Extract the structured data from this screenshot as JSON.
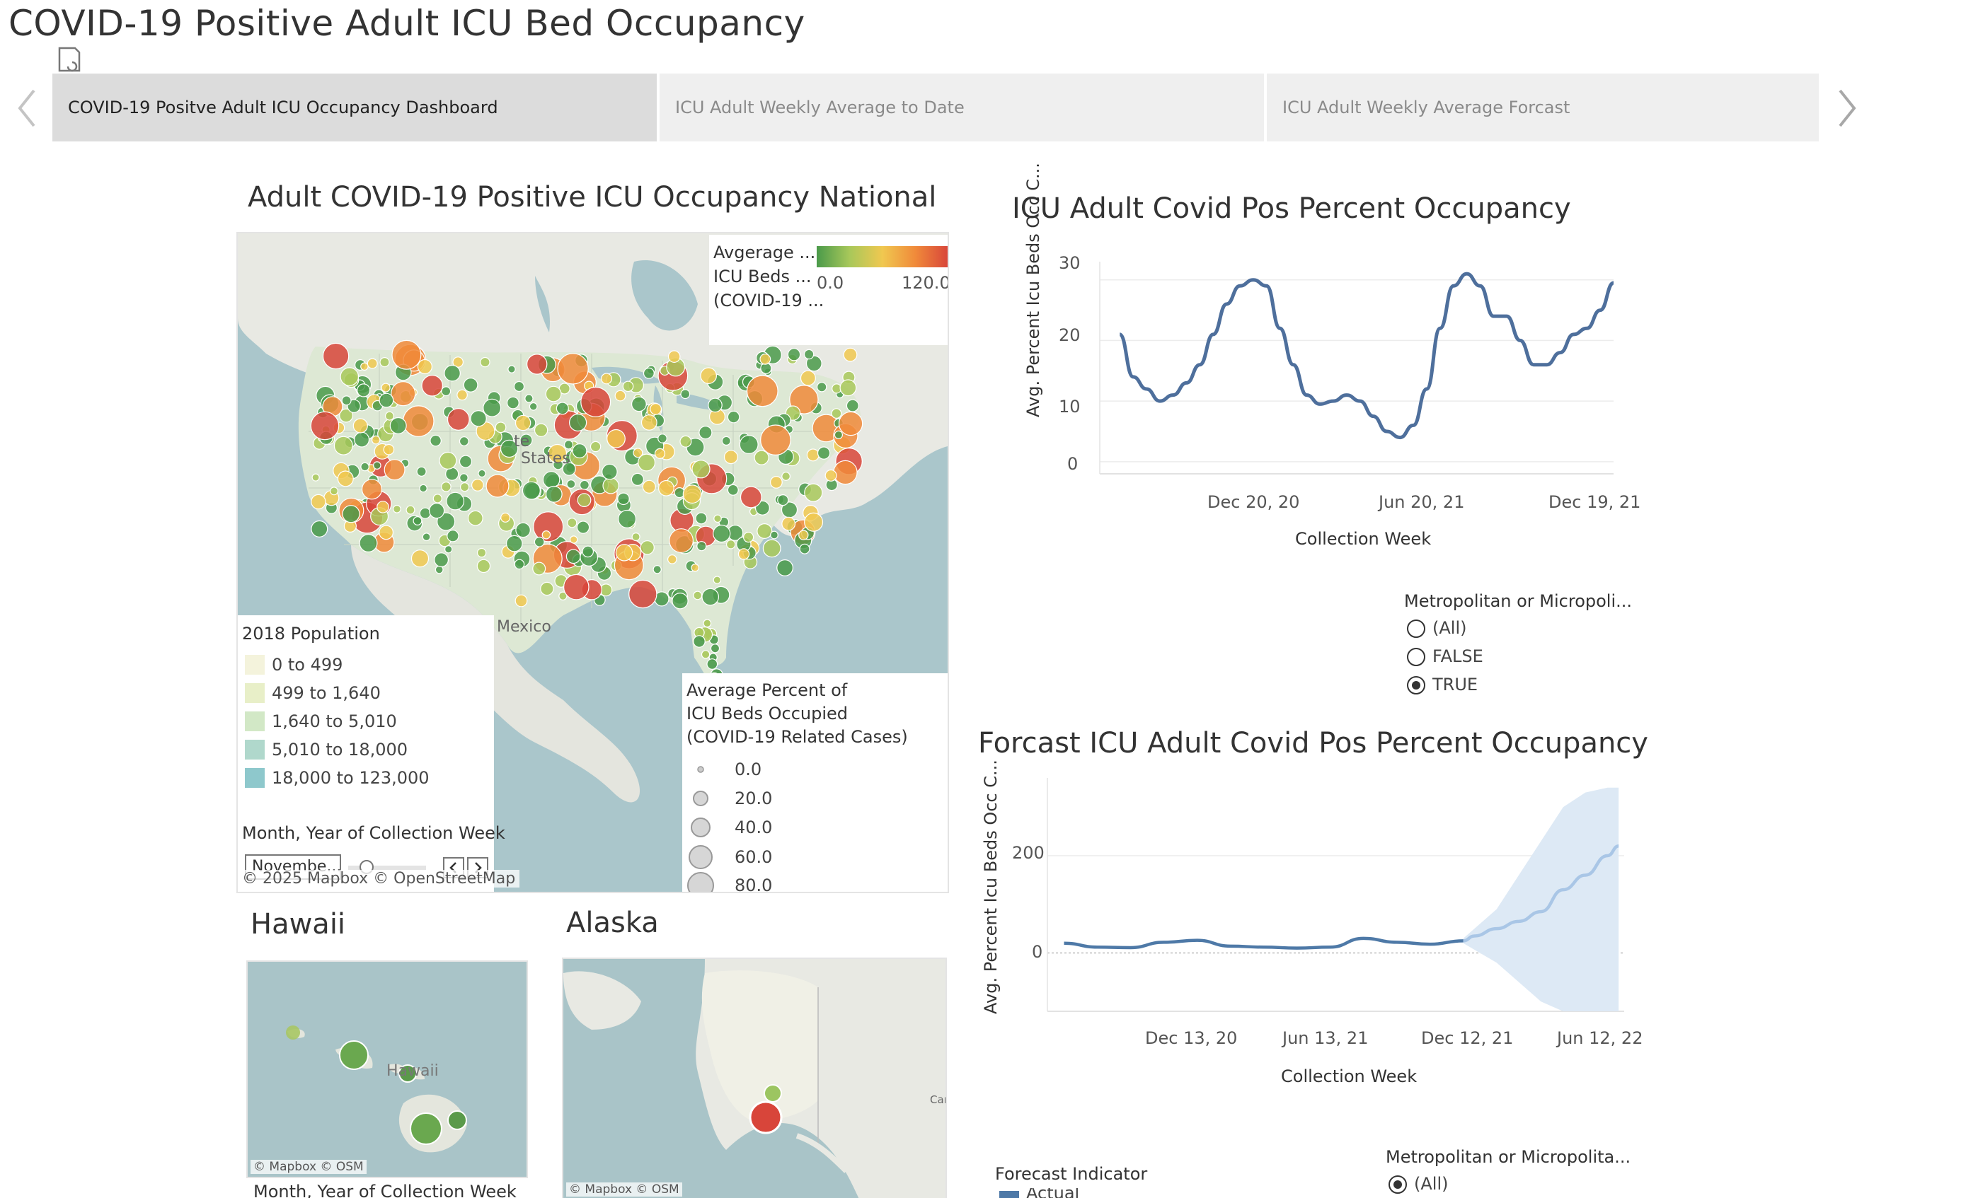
{
  "dashboard": {
    "title": "COVID-19 Positive Adult ICU Bed Occupancy"
  },
  "tabs": [
    {
      "label": "COVID-19 Positve Adult ICU Occupancy Dashboard",
      "active": true
    },
    {
      "label": "ICU Adult Weekly Average to Date",
      "active": false
    },
    {
      "label": "ICU Adult Weekly Average Forcast",
      "active": false
    }
  ],
  "map": {
    "title": "Adult COVID-19 Positive ICU Occupancy National",
    "label_mexico": "Mexico",
    "label_states": "States",
    "label_states_prefix": "te",
    "attribution": "© 2025 Mapbox  © OpenStreetMap",
    "color_legend": {
      "title_lines": [
        "Avgerage ...",
        "ICU Beds ...",
        "(COVID-19 ..."
      ],
      "min": "0.0",
      "max": "120.0",
      "colors": [
        "#4a9a4a",
        "#a8c85a",
        "#f0c850",
        "#f08a3a",
        "#d8453a"
      ]
    },
    "population_legend": {
      "title": "2018 Population",
      "items": [
        {
          "label": "0 to 499",
          "color": "#f4f3dc"
        },
        {
          "label": "499 to 1,640",
          "color": "#e8efc8"
        },
        {
          "label": "1,640 to 5,010",
          "color": "#d2e8c6"
        },
        {
          "label": "5,010 to 18,000",
          "color": "#b0d8cc"
        },
        {
          "label": "18,000 to 123,000",
          "color": "#8ec8cc"
        }
      ]
    },
    "size_legend": {
      "title_lines": [
        "Average Percent of",
        "ICU Beds Occupied",
        "(COVID-19 Related Cases)"
      ],
      "items": [
        "0.0",
        "20.0",
        "40.0",
        "60.0",
        "80.0"
      ]
    },
    "month_filter": {
      "title": "Month, Year of Collection Week",
      "value": "Novembe..."
    }
  },
  "hawaii": {
    "title": "Hawaii",
    "label": "Hawaii",
    "label_prefix": "H",
    "attribution": "© Mapbox  © OSM",
    "filter_title": "Month, Year of Collection Week"
  },
  "alaska": {
    "title": "Alaska",
    "label_side": "Can",
    "attribution": "© Mapbox  © OSM"
  },
  "line_chart": {
    "title": "ICU Adult Covid Pos Percent Occupancy",
    "ylabel": "Avg. Percent Icu Beds Occ C...",
    "xlabel": "Collection Week",
    "yticks": [
      "30",
      "20",
      "10",
      "0"
    ],
    "xticks": [
      "Dec 20, 20",
      "Jun 20, 21",
      "Dec 19, 21"
    ]
  },
  "metro_filter_1": {
    "title": "Metropolitan or Micropoli...",
    "options": [
      {
        "label": "(All)",
        "selected": false
      },
      {
        "label": "FALSE",
        "selected": false
      },
      {
        "label": "TRUE",
        "selected": true
      }
    ]
  },
  "forecast_chart": {
    "title": "Forcast ICU Adult Covid Pos Percent Occupancy",
    "ylabel": "Avg. Percent Icu Beds Occ C...",
    "xlabel": "Collection Week",
    "yticks": [
      "200",
      "0"
    ],
    "xticks": [
      "Dec 13, 20",
      "Jun 13, 21",
      "Dec 12, 21",
      "Jun 12, 22"
    ]
  },
  "forecast_legend": {
    "title": "Forecast Indicator",
    "items": [
      {
        "label": "Actual",
        "color": "#4e79a7"
      }
    ]
  },
  "metro_filter_2": {
    "title": "Metropolitan or Micropolita...",
    "options": [
      {
        "label": "(All)",
        "selected": true
      }
    ]
  },
  "chart_data": [
    {
      "type": "line",
      "title": "ICU Adult Covid Pos Percent Occupancy",
      "xlabel": "Collection Week",
      "ylabel": "Avg. Percent Icu Beds Occ C...",
      "ylim": [
        -2,
        33
      ],
      "x": [
        "2020-08-02",
        "2020-08-16",
        "2020-08-30",
        "2020-09-13",
        "2020-09-27",
        "2020-10-11",
        "2020-10-25",
        "2020-11-08",
        "2020-11-22",
        "2020-12-06",
        "2020-12-20",
        "2021-01-03",
        "2021-01-17",
        "2021-01-31",
        "2021-02-14",
        "2021-02-28",
        "2021-03-14",
        "2021-03-28",
        "2021-04-11",
        "2021-04-25",
        "2021-05-09",
        "2021-05-23",
        "2021-06-06",
        "2021-06-20",
        "2021-07-04",
        "2021-07-18",
        "2021-08-01",
        "2021-08-15",
        "2021-08-29",
        "2021-09-12",
        "2021-09-26",
        "2021-10-10",
        "2021-10-24",
        "2021-11-07",
        "2021-11-21",
        "2021-12-05",
        "2021-12-19",
        "2022-01-02"
      ],
      "series": [
        {
          "color": "#4e6f9c",
          "values": [
            21,
            14,
            12,
            10,
            11,
            13,
            16,
            21,
            26,
            29,
            30,
            29,
            22,
            16,
            11,
            9.5,
            10,
            11,
            10,
            7.5,
            5,
            4,
            6,
            12,
            22,
            29,
            31,
            29,
            24,
            24,
            20,
            16,
            16,
            18,
            21,
            22,
            25,
            29.5
          ]
        }
      ],
      "grid": true
    },
    {
      "type": "area",
      "title": "Forcast ICU Adult Covid Pos Percent Occupancy",
      "xlabel": "Collection Week",
      "ylabel": "Avg. Percent Icu Beds Occ C...",
      "ylim": [
        -120,
        360
      ],
      "x": [
        "2020-08-02",
        "2020-09-13",
        "2020-10-25",
        "2020-12-06",
        "2021-01-17",
        "2021-02-28",
        "2021-04-11",
        "2021-05-23",
        "2021-07-04",
        "2021-08-15",
        "2021-09-26",
        "2021-11-07",
        "2021-12-19",
        "2022-01-02",
        "2022-01-30",
        "2022-02-27",
        "2022-03-27",
        "2022-04-24",
        "2022-05-22",
        "2022-06-19",
        "2022-07-03"
      ],
      "series": [
        {
          "name": "Actual",
          "color": "#4e79a7",
          "values": [
            20,
            12,
            11,
            22,
            26,
            14,
            12,
            10,
            12,
            30,
            22,
            18,
            25,
            null,
            null,
            null,
            null,
            null,
            null,
            null,
            null
          ]
        },
        {
          "color": "#a9c6e6",
          "values": [
            null,
            null,
            null,
            null,
            null,
            null,
            null,
            null,
            null,
            null,
            null,
            null,
            25,
            35,
            50,
            65,
            85,
            130,
            160,
            200,
            220
          ]
        }
      ],
      "forecast_band": {
        "x": [
          "2021-12-19",
          "2022-01-30",
          "2022-02-27",
          "2022-03-27",
          "2022-04-24",
          "2022-05-22",
          "2022-06-19",
          "2022-07-03"
        ],
        "upper": [
          30,
          90,
          160,
          230,
          300,
          330,
          340,
          340
        ],
        "lower": [
          20,
          -20,
          -60,
          -100,
          -120,
          -120,
          -120,
          -120
        ]
      },
      "grid": true
    }
  ]
}
